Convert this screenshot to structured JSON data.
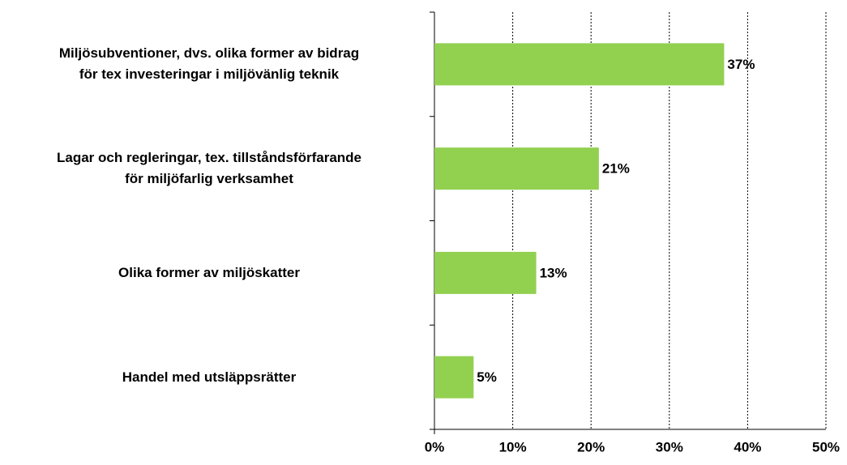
{
  "chart_data": {
    "type": "bar",
    "orientation": "horizontal",
    "categories": [
      "Miljösubventioner, dvs. olika former av bidrag\nför tex investeringar i miljövänlig teknik",
      "Lagar och regleringar, tex. tillståndsförfarande\nför miljöfarlig verksamhet",
      "Olika former av miljöskatter",
      "Handel med utsläppsrätter"
    ],
    "values": [
      37,
      21,
      13,
      5
    ],
    "value_labels": [
      "37%",
      "21%",
      "13%",
      "5%"
    ],
    "color": "#92d050",
    "xlim": [
      0,
      50
    ],
    "xticks": [
      {
        "value": 0,
        "label": "0%"
      },
      {
        "value": 10,
        "label": "10%"
      },
      {
        "value": 20,
        "label": "20%"
      },
      {
        "value": 30,
        "label": "30%"
      },
      {
        "value": 40,
        "label": "40%"
      },
      {
        "value": 50,
        "label": "50%"
      }
    ],
    "grid": true
  }
}
